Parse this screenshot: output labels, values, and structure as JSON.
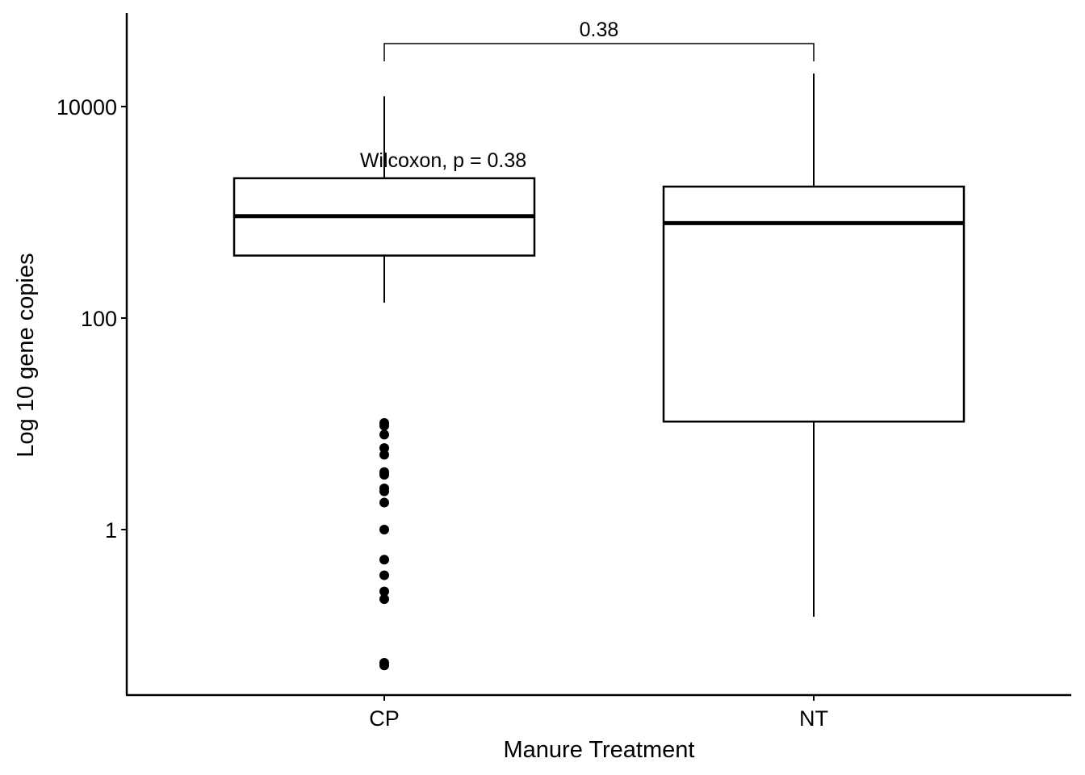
{
  "chart_data": {
    "type": "box",
    "xlabel": "Manure Treatment",
    "ylabel": "Log 10 gene copies",
    "y_scale": "log10",
    "ylim": [
      0.04,
      70000
    ],
    "y_ticks": [
      {
        "value": 1,
        "label": "1"
      },
      {
        "value": 100,
        "label": "100"
      },
      {
        "value": 10000,
        "label": "10000"
      }
    ],
    "categories": [
      "CP",
      "NT"
    ],
    "boxes": [
      {
        "category": "CP",
        "whisker_low": 140,
        "q1": 390,
        "median": 920,
        "q3": 2100,
        "whisker_high": 12500,
        "outliers": [
          10.2,
          9.6,
          7.9,
          5.9,
          5.1,
          3.5,
          3.3,
          2.45,
          2.3,
          1.8,
          1.0,
          0.52,
          0.37,
          0.26,
          0.22,
          0.055,
          0.052
        ]
      },
      {
        "category": "NT",
        "whisker_low": 0.15,
        "q1": 10.5,
        "median": 790,
        "q3": 1750,
        "whisker_high": 20500,
        "outliers": []
      }
    ],
    "annotations": {
      "test_label": "Wilcoxon, p = 0.38",
      "bracket_label": "0.38"
    },
    "grid": false,
    "legend": "none"
  }
}
